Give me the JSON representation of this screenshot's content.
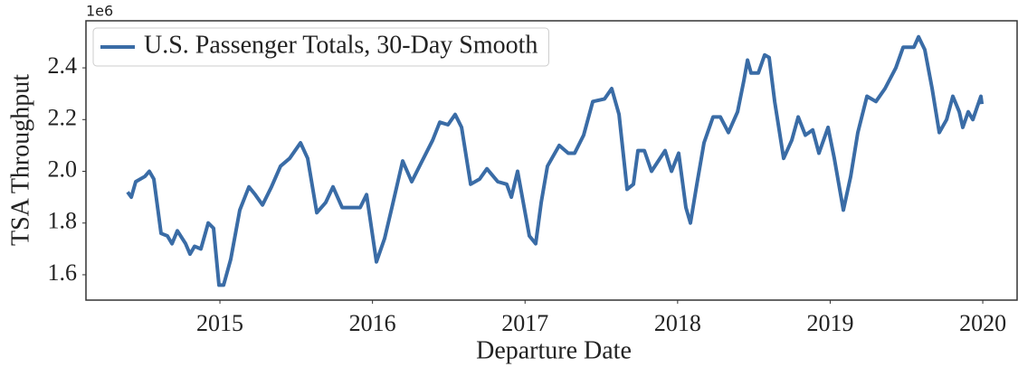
{
  "chart_data": {
    "type": "line",
    "x_label": "Departure Date",
    "y_label": "TSA Throughput",
    "y_offset_label": "1e6",
    "xlim": [
      2014.122,
      2020.225
    ],
    "xticks": [
      2015,
      2016,
      2017,
      2018,
      2019,
      2020
    ],
    "ylim": [
      1.502,
      2.582
    ],
    "yticks": [
      1.6,
      1.8,
      {
        "value": 2,
        "label": "2.0"
      },
      2.2,
      2.4
    ],
    "grid": false,
    "legend": "upper left",
    "x": [
      2014.395,
      2014.419,
      2014.448,
      2014.508,
      2014.537,
      2014.567,
      2014.614,
      2014.656,
      2014.686,
      2014.721,
      2014.775,
      2014.804,
      2014.834,
      2014.875,
      2014.923,
      2014.958,
      2014.994,
      2015.024,
      2015.071,
      2015.13,
      2015.19,
      2015.231,
      2015.279,
      2015.338,
      2015.397,
      2015.457,
      2015.528,
      2015.575,
      2015.635,
      2015.694,
      2015.741,
      2015.801,
      2015.86,
      2015.919,
      2015.961,
      2016.026,
      2016.079,
      2016.127,
      2016.198,
      2016.257,
      2016.317,
      2016.394,
      2016.441,
      2016.495,
      2016.542,
      2016.584,
      2016.643,
      2016.702,
      2016.75,
      2016.821,
      2016.88,
      2016.91,
      2016.951,
      2017.028,
      2017.07,
      2017.106,
      2017.147,
      2017.224,
      2017.283,
      2017.325,
      2017.384,
      2017.444,
      2017.521,
      2017.568,
      2017.616,
      2017.669,
      2017.71,
      2017.74,
      2017.782,
      2017.829,
      2017.918,
      2017.96,
      2018.007,
      2018.054,
      2018.084,
      2018.126,
      2018.173,
      2018.232,
      2018.28,
      2018.333,
      2018.393,
      2018.434,
      2018.458,
      2018.481,
      2018.529,
      2018.57,
      2018.6,
      2018.636,
      2018.695,
      2018.748,
      2018.79,
      2018.837,
      2018.885,
      2018.926,
      2018.986,
      2019.027,
      2019.086,
      2019.134,
      2019.181,
      2019.241,
      2019.3,
      2019.359,
      2019.43,
      2019.478,
      2019.549,
      2019.579,
      2019.62,
      2019.668,
      2019.715,
      2019.763,
      2019.804,
      2019.846,
      2019.869,
      2019.905,
      2019.935,
      2019.964,
      2019.988,
      2019.994
    ],
    "series": [
      {
        "name": "U.S. Passenger Totals, 30-Day Smooth",
        "color": "#3a6ca6",
        "values": [
          1.92,
          1.9,
          1.96,
          1.98,
          2.0,
          1.97,
          1.76,
          1.75,
          1.72,
          1.77,
          1.72,
          1.68,
          1.71,
          1.7,
          1.8,
          1.78,
          1.56,
          1.56,
          1.66,
          1.85,
          1.94,
          1.91,
          1.87,
          1.94,
          2.02,
          2.05,
          2.11,
          2.05,
          1.84,
          1.88,
          1.94,
          1.86,
          1.86,
          1.86,
          1.91,
          1.65,
          1.74,
          1.86,
          2.04,
          1.96,
          2.03,
          2.12,
          2.19,
          2.18,
          2.22,
          2.17,
          1.95,
          1.97,
          2.01,
          1.96,
          1.95,
          1.9,
          2.0,
          1.75,
          1.72,
          1.88,
          2.02,
          2.1,
          2.07,
          2.07,
          2.14,
          2.27,
          2.28,
          2.32,
          2.22,
          1.93,
          1.95,
          2.08,
          2.08,
          2.0,
          2.08,
          2.0,
          2.07,
          1.86,
          1.8,
          1.95,
          2.11,
          2.21,
          2.21,
          2.15,
          2.23,
          2.35,
          2.43,
          2.38,
          2.38,
          2.45,
          2.44,
          2.27,
          2.05,
          2.12,
          2.21,
          2.14,
          2.16,
          2.07,
          2.17,
          2.05,
          1.85,
          1.98,
          2.15,
          2.29,
          2.27,
          2.32,
          2.4,
          2.48,
          2.48,
          2.52,
          2.47,
          2.32,
          2.15,
          2.2,
          2.29,
          2.23,
          2.17,
          2.23,
          2.2,
          2.25,
          2.29,
          2.26
        ]
      }
    ]
  }
}
